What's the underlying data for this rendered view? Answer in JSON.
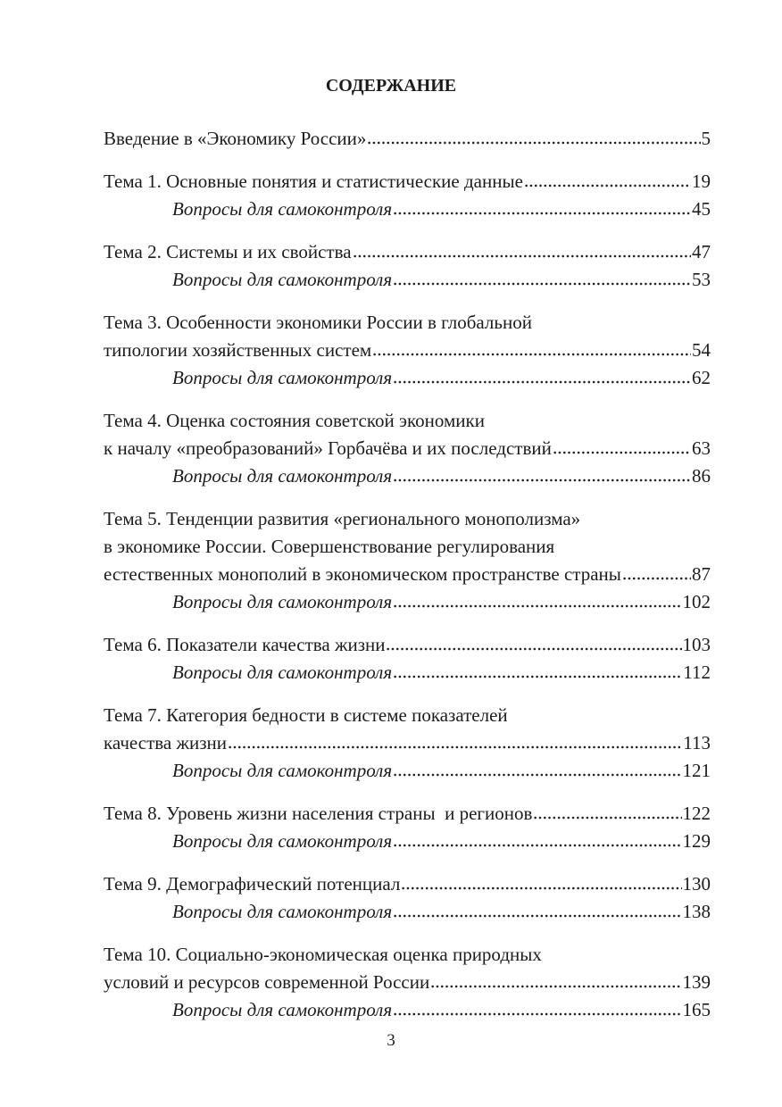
{
  "header": {
    "title": "СОДЕРЖАНИЕ"
  },
  "entries": [
    {
      "lines": [
        "Введение в «Экономику России»"
      ],
      "page": "5"
    },
    {
      "lines": [
        "Тема 1. Основные понятия и статистические данные"
      ],
      "page": "19",
      "questions": {
        "label": "Вопросы для самоконтроля",
        "page": "45"
      }
    },
    {
      "lines": [
        "Тема 2. Системы и их свойства"
      ],
      "page": "47",
      "questions": {
        "label": "Вопросы для самоконтроля",
        "page": "53"
      }
    },
    {
      "lines": [
        "Тема 3. Особенности экономики России в глобальной",
        "типологии хозяйственных систем"
      ],
      "page": "54",
      "questions": {
        "label": "Вопросы для самоконтроля",
        "page": "62"
      }
    },
    {
      "lines": [
        "Тема 4. Оценка состояния советской экономики",
        "к началу «преобразований» Горбачёва и их последствий"
      ],
      "page": "63",
      "questions": {
        "label": "Вопросы для самоконтроля",
        "page": "86"
      }
    },
    {
      "lines": [
        "Тема 5. Тенденции развития «регионального монополизма»",
        "в экономике России. Совершенствование регулирования",
        "естественных монополий в экономическом пространстве страны"
      ],
      "page": "87",
      "questions": {
        "label": "Вопросы для самоконтроля",
        "page": "102"
      }
    },
    {
      "lines": [
        "Тема 6. Показатели качества жизни"
      ],
      "page": "103",
      "questions": {
        "label": "Вопросы для самоконтроля",
        "page": "112"
      }
    },
    {
      "lines": [
        "Тема 7. Категория бедности в системе показателей",
        "качества жизни"
      ],
      "page": "113",
      "questions": {
        "label": "Вопросы для самоконтроля",
        "page": "121"
      }
    },
    {
      "lines": [
        "Тема 8. Уровень жизни населения страны  и регионов"
      ],
      "page": "122",
      "questions": {
        "label": "Вопросы для самоконтроля",
        "page": "129"
      }
    },
    {
      "lines": [
        "Тема 9. Демографический потенциал"
      ],
      "page": "130",
      "questions": {
        "label": "Вопросы для самоконтроля",
        "page": "138"
      }
    },
    {
      "lines": [
        "Тема 10. Социально-экономическая оценка природных",
        "условий и ресурсов современной России"
      ],
      "page": "139",
      "questions": {
        "label": "Вопросы для самоконтроля",
        "page": "165"
      }
    }
  ],
  "footer": {
    "page_number": "3"
  }
}
